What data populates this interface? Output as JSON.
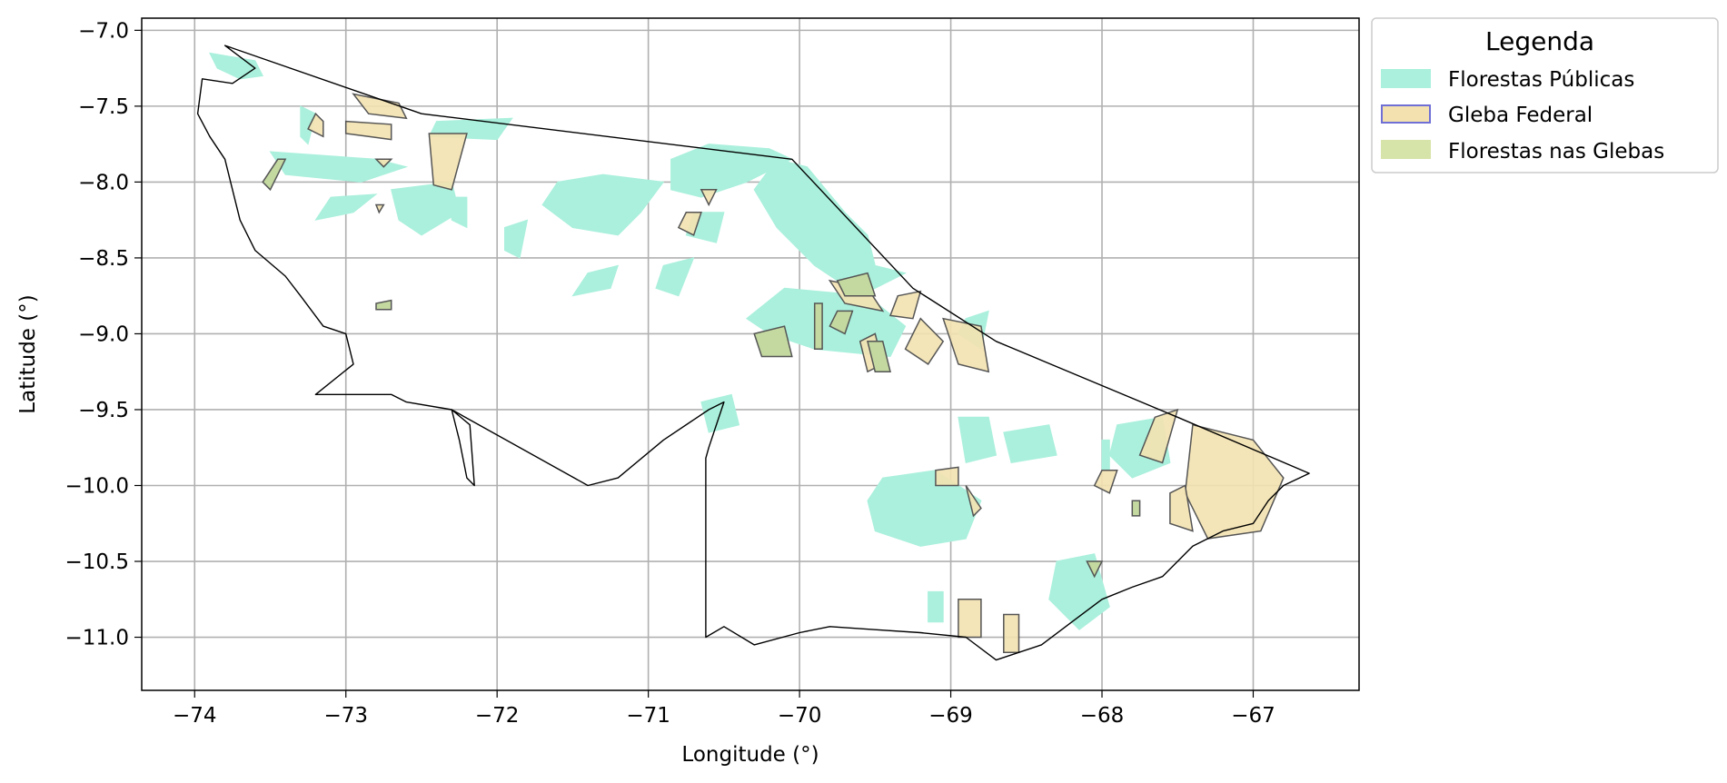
{
  "chart_data": {
    "type": "map",
    "xlabel": "Longitude (°)",
    "ylabel": "Latitude (°)",
    "xlim": [
      -74.35,
      -66.3
    ],
    "ylim": [
      -11.35,
      -6.92
    ],
    "x_ticks": [
      -74,
      -73,
      -72,
      -71,
      -70,
      -69,
      -68,
      -67
    ],
    "y_ticks": [
      -7.0,
      -7.5,
      -8.0,
      -8.5,
      -9.0,
      -9.5,
      -10.0,
      -10.5,
      -11.0
    ],
    "x_tick_labels": [
      "−74",
      "−73",
      "−72",
      "−71",
      "−70",
      "−69",
      "−68",
      "−67"
    ],
    "y_tick_labels": [
      "−7.0",
      "−7.5",
      "−8.0",
      "−8.5",
      "−9.0",
      "−9.5",
      "−10.0",
      "−10.5",
      "−11.0"
    ],
    "grid": true,
    "legend": {
      "title": "Legenda",
      "placement": "outside-top-right",
      "entries": [
        {
          "label": "Florestas Públicas",
          "color": "#aaf0dc",
          "edge": "#aaf0dc"
        },
        {
          "label": "Gleba Federal",
          "color": "#f3e2b0",
          "edge": "#6f6fd6"
        },
        {
          "label": "Florestas nas Glebas",
          "color": "#d6e3a9",
          "edge": "#d6e3a9"
        }
      ]
    },
    "state_outline": [
      [
        -73.8,
        -7.1
      ],
      [
        -73.6,
        -7.25
      ],
      [
        -73.75,
        -7.35
      ],
      [
        -73.95,
        -7.32
      ],
      [
        -73.98,
        -7.55
      ],
      [
        -73.9,
        -7.7
      ],
      [
        -73.8,
        -7.85
      ],
      [
        -73.75,
        -8.05
      ],
      [
        -73.7,
        -8.25
      ],
      [
        -73.6,
        -8.45
      ],
      [
        -73.4,
        -8.62
      ],
      [
        -73.3,
        -8.75
      ],
      [
        -73.15,
        -8.95
      ],
      [
        -73.0,
        -9.0
      ],
      [
        -72.95,
        -9.2
      ],
      [
        -73.2,
        -9.4
      ],
      [
        -72.7,
        -9.4
      ],
      [
        -72.6,
        -9.45
      ],
      [
        -72.3,
        -9.5
      ],
      [
        -72.25,
        -9.7
      ],
      [
        -72.2,
        -9.95
      ],
      [
        -72.15,
        -10.0
      ],
      [
        -72.18,
        -9.6
      ],
      [
        -72.3,
        -9.5
      ],
      [
        -71.4,
        -10.0
      ],
      [
        -71.2,
        -9.95
      ],
      [
        -70.9,
        -9.7
      ],
      [
        -70.6,
        -9.5
      ],
      [
        -70.5,
        -9.45
      ],
      [
        -70.6,
        -9.75
      ],
      [
        -70.62,
        -9.82
      ],
      [
        -70.62,
        -11.0
      ],
      [
        -70.5,
        -10.93
      ],
      [
        -70.3,
        -11.05
      ],
      [
        -70.0,
        -10.97
      ],
      [
        -69.8,
        -10.93
      ],
      [
        -69.5,
        -10.95
      ],
      [
        -69.2,
        -10.97
      ],
      [
        -68.9,
        -11.0
      ],
      [
        -68.7,
        -11.15
      ],
      [
        -68.4,
        -11.05
      ],
      [
        -68.2,
        -10.9
      ],
      [
        -68.0,
        -10.75
      ],
      [
        -67.8,
        -10.67
      ],
      [
        -67.6,
        -10.6
      ],
      [
        -67.4,
        -10.4
      ],
      [
        -67.2,
        -10.3
      ],
      [
        -67.0,
        -10.25
      ],
      [
        -66.9,
        -10.1
      ],
      [
        -66.8,
        -10.0
      ],
      [
        -66.63,
        -9.92
      ],
      [
        -67.5,
        -9.55
      ],
      [
        -68.7,
        -9.05
      ],
      [
        -69.25,
        -8.7
      ],
      [
        -70.05,
        -7.85
      ],
      [
        -72.5,
        -7.55
      ],
      [
        -73.8,
        -7.1
      ]
    ],
    "florestas_publicas": [
      [
        [
          -73.9,
          -7.15
        ],
        [
          -73.6,
          -7.2
        ],
        [
          -73.55,
          -7.3
        ],
        [
          -73.7,
          -7.32
        ],
        [
          -73.85,
          -7.25
        ]
      ],
      [
        [
          -73.3,
          -7.5
        ],
        [
          -73.2,
          -7.55
        ],
        [
          -73.25,
          -7.75
        ],
        [
          -73.3,
          -7.7
        ]
      ],
      [
        [
          -72.4,
          -7.6
        ],
        [
          -71.9,
          -7.58
        ],
        [
          -72.0,
          -7.72
        ],
        [
          -72.45,
          -7.7
        ]
      ],
      [
        [
          -73.5,
          -7.8
        ],
        [
          -72.8,
          -7.85
        ],
        [
          -72.6,
          -7.9
        ],
        [
          -72.9,
          -8.0
        ],
        [
          -73.4,
          -7.95
        ]
      ],
      [
        [
          -73.1,
          -8.1
        ],
        [
          -72.8,
          -8.08
        ],
        [
          -72.95,
          -8.2
        ],
        [
          -73.2,
          -8.25
        ]
      ],
      [
        [
          -72.7,
          -8.05
        ],
        [
          -72.3,
          -8.0
        ],
        [
          -72.25,
          -8.2
        ],
        [
          -72.5,
          -8.35
        ],
        [
          -72.65,
          -8.25
        ]
      ],
      [
        [
          -72.3,
          -8.1
        ],
        [
          -72.2,
          -8.1
        ],
        [
          -72.2,
          -8.3
        ],
        [
          -72.3,
          -8.25
        ]
      ],
      [
        [
          -71.95,
          -8.3
        ],
        [
          -71.8,
          -8.25
        ],
        [
          -71.85,
          -8.5
        ],
        [
          -71.95,
          -8.45
        ]
      ],
      [
        [
          -71.6,
          -8.0
        ],
        [
          -71.3,
          -7.95
        ],
        [
          -70.9,
          -8.0
        ],
        [
          -71.05,
          -8.2
        ],
        [
          -71.2,
          -8.35
        ],
        [
          -71.5,
          -8.3
        ],
        [
          -71.7,
          -8.15
        ]
      ],
      [
        [
          -71.4,
          -8.6
        ],
        [
          -71.2,
          -8.55
        ],
        [
          -71.25,
          -8.7
        ],
        [
          -71.5,
          -8.75
        ]
      ],
      [
        [
          -70.9,
          -8.55
        ],
        [
          -70.7,
          -8.5
        ],
        [
          -70.8,
          -8.75
        ],
        [
          -70.95,
          -8.7
        ]
      ],
      [
        [
          -70.85,
          -7.85
        ],
        [
          -70.6,
          -7.75
        ],
        [
          -70.2,
          -7.78
        ],
        [
          -70.05,
          -7.85
        ],
        [
          -70.35,
          -8.0
        ],
        [
          -70.65,
          -8.1
        ],
        [
          -70.85,
          -8.05
        ]
      ],
      [
        [
          -70.7,
          -8.2
        ],
        [
          -70.5,
          -8.2
        ],
        [
          -70.55,
          -8.4
        ],
        [
          -70.75,
          -8.35
        ]
      ],
      [
        [
          -70.15,
          -7.85
        ],
        [
          -69.95,
          -7.9
        ],
        [
          -69.7,
          -8.2
        ],
        [
          -69.55,
          -8.35
        ],
        [
          -69.5,
          -8.55
        ],
        [
          -69.3,
          -8.6
        ],
        [
          -69.6,
          -8.75
        ],
        [
          -69.9,
          -8.55
        ],
        [
          -70.15,
          -8.3
        ],
        [
          -70.3,
          -8.05
        ]
      ],
      [
        [
          -70.1,
          -8.7
        ],
        [
          -69.55,
          -8.75
        ],
        [
          -69.3,
          -8.95
        ],
        [
          -69.4,
          -9.15
        ],
        [
          -69.9,
          -9.1
        ],
        [
          -70.2,
          -9.0
        ],
        [
          -70.35,
          -8.9
        ]
      ],
      [
        [
          -68.9,
          -8.9
        ],
        [
          -68.75,
          -8.85
        ],
        [
          -68.8,
          -9.1
        ],
        [
          -68.95,
          -9.0
        ]
      ],
      [
        [
          -70.65,
          -9.45
        ],
        [
          -70.45,
          -9.4
        ],
        [
          -70.4,
          -9.6
        ],
        [
          -70.6,
          -9.65
        ]
      ],
      [
        [
          -69.45,
          -9.95
        ],
        [
          -69.1,
          -9.9
        ],
        [
          -68.8,
          -10.1
        ],
        [
          -68.9,
          -10.35
        ],
        [
          -69.2,
          -10.4
        ],
        [
          -69.5,
          -10.3
        ],
        [
          -69.55,
          -10.1
        ]
      ],
      [
        [
          -68.95,
          -9.55
        ],
        [
          -68.75,
          -9.55
        ],
        [
          -68.7,
          -9.8
        ],
        [
          -68.9,
          -9.85
        ]
      ],
      [
        [
          -68.65,
          -9.65
        ],
        [
          -68.35,
          -9.6
        ],
        [
          -68.3,
          -9.8
        ],
        [
          -68.6,
          -9.85
        ]
      ],
      [
        [
          -69.15,
          -10.7
        ],
        [
          -69.05,
          -10.7
        ],
        [
          -69.05,
          -10.9
        ],
        [
          -69.15,
          -10.9
        ]
      ],
      [
        [
          -68.3,
          -10.5
        ],
        [
          -68.05,
          -10.45
        ],
        [
          -67.95,
          -10.8
        ],
        [
          -68.15,
          -10.95
        ],
        [
          -68.35,
          -10.75
        ]
      ],
      [
        [
          -67.9,
          -9.6
        ],
        [
          -67.6,
          -9.55
        ],
        [
          -67.55,
          -9.85
        ],
        [
          -67.8,
          -9.95
        ],
        [
          -67.95,
          -9.8
        ]
      ],
      [
        [
          -68.0,
          -9.7
        ],
        [
          -67.95,
          -9.7
        ],
        [
          -67.95,
          -9.9
        ],
        [
          -68.0,
          -9.9
        ]
      ]
    ],
    "gleba_federal": [
      [
        [
          -72.95,
          -7.42
        ],
        [
          -72.65,
          -7.48
        ],
        [
          -72.6,
          -7.58
        ],
        [
          -72.85,
          -7.55
        ]
      ],
      [
        [
          -73.2,
          -7.55
        ],
        [
          -73.15,
          -7.6
        ],
        [
          -73.15,
          -7.7
        ],
        [
          -73.25,
          -7.65
        ]
      ],
      [
        [
          -73.0,
          -7.6
        ],
        [
          -72.7,
          -7.62
        ],
        [
          -72.7,
          -7.72
        ],
        [
          -72.85,
          -7.7
        ],
        [
          -73.0,
          -7.68
        ]
      ],
      [
        [
          -72.45,
          -7.68
        ],
        [
          -72.2,
          -7.68
        ],
        [
          -72.3,
          -8.05
        ],
        [
          -72.42,
          -8.02
        ]
      ],
      [
        [
          -72.8,
          -7.85
        ],
        [
          -72.7,
          -7.85
        ],
        [
          -72.75,
          -7.9
        ]
      ],
      [
        [
          -72.8,
          -8.15
        ],
        [
          -72.75,
          -8.15
        ],
        [
          -72.78,
          -8.2
        ]
      ],
      [
        [
          -70.65,
          -8.05
        ],
        [
          -70.55,
          -8.05
        ],
        [
          -70.6,
          -8.15
        ]
      ],
      [
        [
          -70.75,
          -8.2
        ],
        [
          -70.65,
          -8.2
        ],
        [
          -70.7,
          -8.35
        ],
        [
          -70.8,
          -8.3
        ]
      ],
      [
        [
          -69.8,
          -8.65
        ],
        [
          -69.55,
          -8.7
        ],
        [
          -69.45,
          -8.85
        ],
        [
          -69.7,
          -8.8
        ]
      ],
      [
        [
          -69.35,
          -8.75
        ],
        [
          -69.2,
          -8.72
        ],
        [
          -69.25,
          -8.9
        ],
        [
          -69.4,
          -8.88
        ]
      ],
      [
        [
          -69.2,
          -8.9
        ],
        [
          -69.05,
          -9.05
        ],
        [
          -69.15,
          -9.2
        ],
        [
          -69.3,
          -9.1
        ]
      ],
      [
        [
          -69.05,
          -8.9
        ],
        [
          -68.8,
          -8.95
        ],
        [
          -68.75,
          -9.25
        ],
        [
          -68.95,
          -9.2
        ],
        [
          -69.0,
          -9.05
        ]
      ],
      [
        [
          -69.6,
          -9.05
        ],
        [
          -69.5,
          -9.0
        ],
        [
          -69.45,
          -9.2
        ],
        [
          -69.55,
          -9.25
        ]
      ],
      [
        [
          -67.65,
          -9.55
        ],
        [
          -67.5,
          -9.5
        ],
        [
          -67.6,
          -9.85
        ],
        [
          -67.75,
          -9.8
        ]
      ],
      [
        [
          -67.4,
          -9.6
        ],
        [
          -67.0,
          -9.7
        ],
        [
          -66.8,
          -9.95
        ],
        [
          -66.95,
          -10.3
        ],
        [
          -67.3,
          -10.35
        ],
        [
          -67.45,
          -10.05
        ]
      ],
      [
        [
          -67.55,
          -10.05
        ],
        [
          -67.45,
          -10.0
        ],
        [
          -67.4,
          -10.3
        ],
        [
          -67.55,
          -10.25
        ]
      ],
      [
        [
          -68.0,
          -9.9
        ],
        [
          -67.9,
          -9.9
        ],
        [
          -67.95,
          -10.05
        ],
        [
          -68.05,
          -10.0
        ]
      ],
      [
        [
          -69.1,
          -9.9
        ],
        [
          -68.95,
          -9.88
        ],
        [
          -68.95,
          -10.0
        ],
        [
          -69.1,
          -10.0
        ]
      ],
      [
        [
          -68.9,
          -10.0
        ],
        [
          -68.8,
          -10.15
        ],
        [
          -68.85,
          -10.2
        ]
      ],
      [
        [
          -68.95,
          -10.75
        ],
        [
          -68.8,
          -10.75
        ],
        [
          -68.8,
          -11.0
        ],
        [
          -68.95,
          -11.0
        ]
      ],
      [
        [
          -68.65,
          -10.85
        ],
        [
          -68.55,
          -10.85
        ],
        [
          -68.55,
          -11.1
        ],
        [
          -68.65,
          -11.1
        ]
      ]
    ],
    "florestas_nas_glebas": [
      [
        [
          -73.45,
          -7.85
        ],
        [
          -73.4,
          -7.85
        ],
        [
          -73.5,
          -8.05
        ],
        [
          -73.55,
          -8.0
        ]
      ],
      [
        [
          -70.3,
          -9.0
        ],
        [
          -70.1,
          -8.95
        ],
        [
          -70.05,
          -9.15
        ],
        [
          -70.25,
          -9.15
        ]
      ],
      [
        [
          -69.9,
          -8.8
        ],
        [
          -69.85,
          -8.8
        ],
        [
          -69.85,
          -9.1
        ],
        [
          -69.9,
          -9.1
        ]
      ],
      [
        [
          -69.75,
          -8.65
        ],
        [
          -69.55,
          -8.6
        ],
        [
          -69.5,
          -8.75
        ],
        [
          -69.7,
          -8.75
        ]
      ],
      [
        [
          -69.75,
          -8.85
        ],
        [
          -69.65,
          -8.85
        ],
        [
          -69.7,
          -9.0
        ],
        [
          -69.8,
          -8.95
        ]
      ],
      [
        [
          -69.55,
          -9.05
        ],
        [
          -69.45,
          -9.05
        ],
        [
          -69.4,
          -9.25
        ],
        [
          -69.5,
          -9.25
        ]
      ],
      [
        [
          -72.8,
          -8.8
        ],
        [
          -72.7,
          -8.78
        ],
        [
          -72.7,
          -8.84
        ],
        [
          -72.8,
          -8.84
        ]
      ],
      [
        [
          -67.8,
          -10.1
        ],
        [
          -67.75,
          -10.1
        ],
        [
          -67.75,
          -10.2
        ],
        [
          -67.8,
          -10.2
        ]
      ],
      [
        [
          -68.1,
          -10.5
        ],
        [
          -68.0,
          -10.5
        ],
        [
          -68.05,
          -10.6
        ]
      ]
    ]
  }
}
